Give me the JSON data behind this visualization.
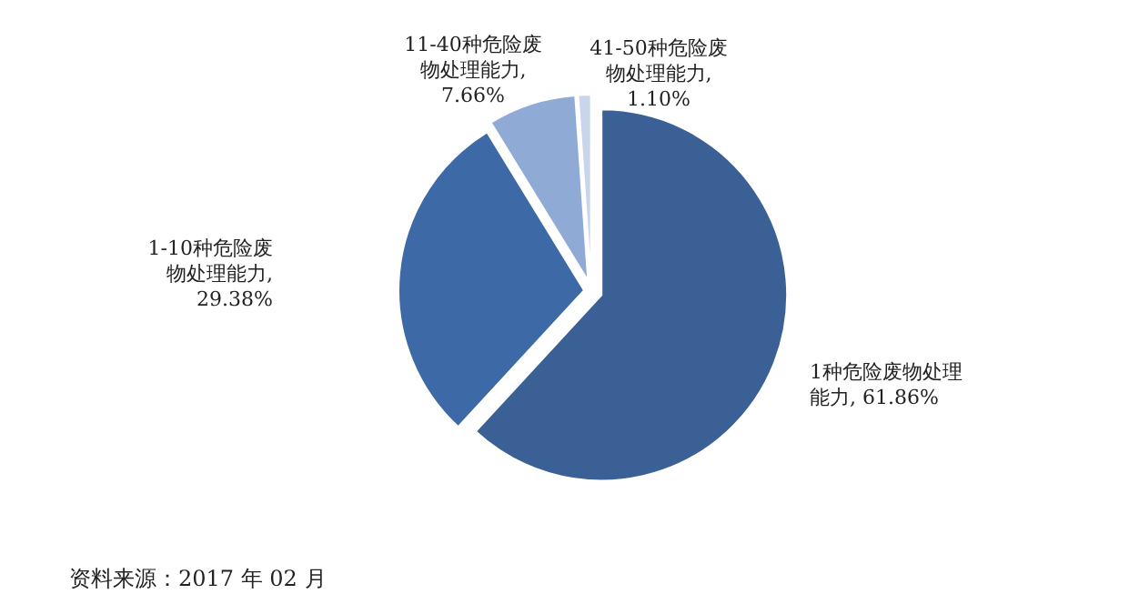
{
  "chart_data": {
    "type": "pie",
    "categories": [
      "1种危险废物处理能力",
      "1-10种危险废物处理能力",
      "11-40种危险废物处理能力",
      "41-50种危险废物处理能力"
    ],
    "values": [
      61.86,
      29.38,
      7.66,
      1.1
    ],
    "value_labels": [
      ", 61.86%",
      ", 29.38%",
      ", 7.66%",
      ", 1.10%"
    ],
    "colors": [
      "#3b6096",
      "#3d69a6",
      "#8eaad5",
      "#c8d5ea"
    ],
    "annotations": [
      "资料来源：2017 年 02 月"
    ],
    "legend": false
  }
}
